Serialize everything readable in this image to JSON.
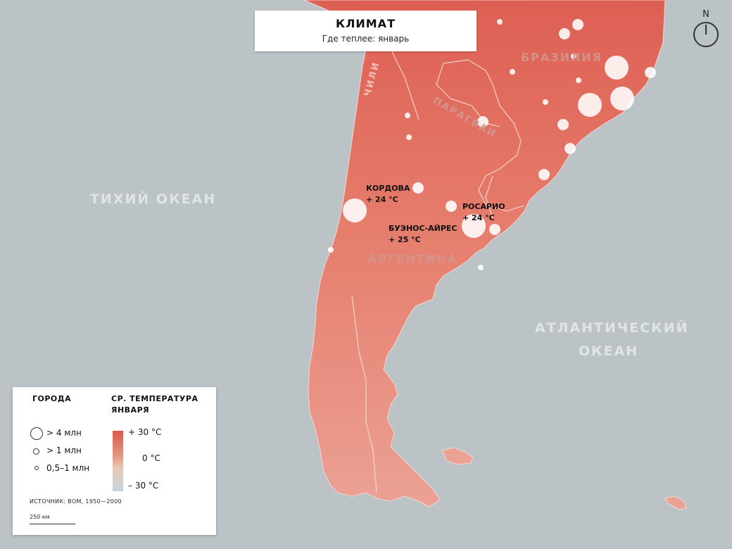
{
  "title": {
    "main": "КЛИМАТ",
    "sub": "Где теплее: январь"
  },
  "compass": {
    "label": "N",
    "icon": "compass-icon"
  },
  "oceans": {
    "pacific": "ТИХИЙ ОКЕАН",
    "atlantic_line1": "АТЛАНТИЧЕСКИЙ",
    "atlantic_line2": "ОКЕАН"
  },
  "countries": {
    "brazil": "БРАЗИЛИЯ",
    "paraguay": "ПАРАГВАЙ",
    "argentina": "АРГЕНТИНА",
    "chile": "ЧИЛИ"
  },
  "cities": [
    {
      "name": "КОРДОВА",
      "temp": "+ 24 °С"
    },
    {
      "name": "РОСАРИО",
      "temp": "+ 24 °С"
    },
    {
      "name": "БУЭНОС-АЙРЕС",
      "temp": "+ 25 °С"
    }
  ],
  "legend": {
    "cities_heading": "ГОРОДА",
    "temp_heading_line1": "СР. ТЕМПЕРАТУРА",
    "temp_heading_line2": "ЯНВАРЯ",
    "sizes": [
      "> 4 млн",
      "> 1 млн",
      "0,5–1 млн"
    ],
    "scale": [
      "+ 30 °С",
      "0 °С",
      "– 30 °С"
    ],
    "source": "ИСТОЧНИК: ВОМ, 1950—2000",
    "scale_bar": "250 км"
  },
  "colors": {
    "ocean": "#bcc3c7",
    "land_hot": "#e0675a",
    "land_mild": "#e98f7f",
    "city": "#ffffff"
  }
}
